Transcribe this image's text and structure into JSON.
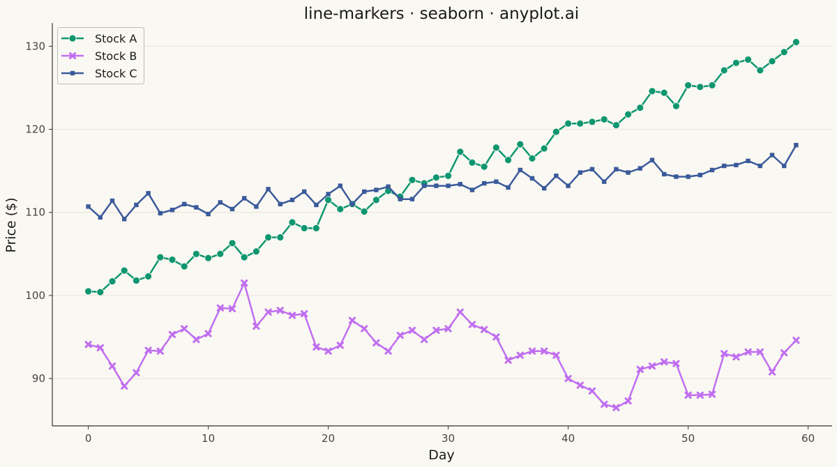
{
  "chart_data": {
    "type": "line",
    "title": "line-markers · seaborn · anyplot.ai",
    "xlabel": "Day",
    "ylabel": "Price ($)",
    "xlim": [
      -3,
      62
    ],
    "ylim": [
      84.3,
      132.8
    ],
    "xticks": [
      "0",
      "10",
      "20",
      "30",
      "40",
      "50",
      "60"
    ],
    "yticks": [
      "90",
      "100",
      "110",
      "120",
      "130"
    ],
    "grid": "horizontal",
    "legend_position": "top-left",
    "x": [
      0,
      1,
      2,
      3,
      4,
      5,
      6,
      7,
      8,
      9,
      10,
      11,
      12,
      13,
      14,
      15,
      16,
      17,
      18,
      19,
      20,
      21,
      22,
      23,
      24,
      25,
      26,
      27,
      28,
      29,
      30,
      31,
      32,
      33,
      34,
      35,
      36,
      37,
      38,
      39,
      40,
      41,
      42,
      43,
      44,
      45,
      46,
      47,
      48,
      49,
      50,
      51,
      52,
      53,
      54,
      55,
      56,
      57,
      58,
      59
    ],
    "series": [
      {
        "name": "Stock A",
        "color": "#0E9670",
        "marker": "circle",
        "values": [
          100.5,
          100.4,
          101.7,
          103.0,
          101.8,
          102.3,
          104.6,
          104.3,
          103.5,
          105.0,
          104.5,
          105.0,
          106.3,
          104.6,
          105.3,
          107.0,
          107.0,
          108.8,
          108.1,
          108.1,
          111.5,
          110.4,
          111.0,
          110.1,
          111.5,
          112.6,
          111.9,
          113.9,
          113.5,
          114.2,
          114.4,
          117.3,
          116.0,
          115.5,
          117.8,
          116.3,
          118.2,
          116.5,
          117.7,
          119.7,
          120.7,
          120.7,
          120.9,
          121.2,
          120.5,
          121.8,
          122.6,
          124.6,
          124.4,
          122.8,
          125.3,
          125.1,
          125.3,
          127.1,
          128.0,
          128.4,
          127.1,
          128.2,
          129.3,
          130.5
        ]
      },
      {
        "name": "Stock B",
        "color": "#C06EF0",
        "marker": "x",
        "values": [
          94.1,
          93.7,
          91.5,
          89.1,
          90.7,
          93.4,
          93.3,
          95.3,
          96.0,
          94.7,
          95.4,
          98.5,
          98.4,
          101.5,
          96.3,
          98.0,
          98.2,
          97.6,
          97.8,
          93.8,
          93.3,
          94.0,
          97.0,
          96.0,
          94.3,
          93.3,
          95.2,
          95.8,
          94.7,
          95.8,
          96.0,
          98.0,
          96.5,
          95.9,
          95.0,
          92.2,
          92.8,
          93.3,
          93.3,
          92.8,
          90.0,
          89.2,
          88.5,
          86.9,
          86.5,
          87.3,
          91.1,
          91.5,
          92.0,
          91.8,
          88.0,
          88.0,
          88.1,
          93.0,
          92.6,
          93.2,
          93.2,
          90.8,
          93.1,
          94.6
        ]
      },
      {
        "name": "Stock C",
        "color": "#3A5A9B",
        "marker": "square",
        "values": [
          110.7,
          109.4,
          111.4,
          109.2,
          110.9,
          112.3,
          109.9,
          110.3,
          111.0,
          110.6,
          109.8,
          111.2,
          110.4,
          111.7,
          110.7,
          112.8,
          111.0,
          111.5,
          112.5,
          110.9,
          112.2,
          113.2,
          111.0,
          112.5,
          112.7,
          113.1,
          111.6,
          111.6,
          113.2,
          113.2,
          113.2,
          113.4,
          112.7,
          113.5,
          113.7,
          113.0,
          115.1,
          114.1,
          112.9,
          114.4,
          113.2,
          114.8,
          115.2,
          113.7,
          115.2,
          114.8,
          115.3,
          116.3,
          114.6,
          114.3,
          114.3,
          114.5,
          115.1,
          115.6,
          115.7,
          116.2,
          115.6,
          116.9,
          115.6,
          118.1
        ]
      }
    ]
  }
}
